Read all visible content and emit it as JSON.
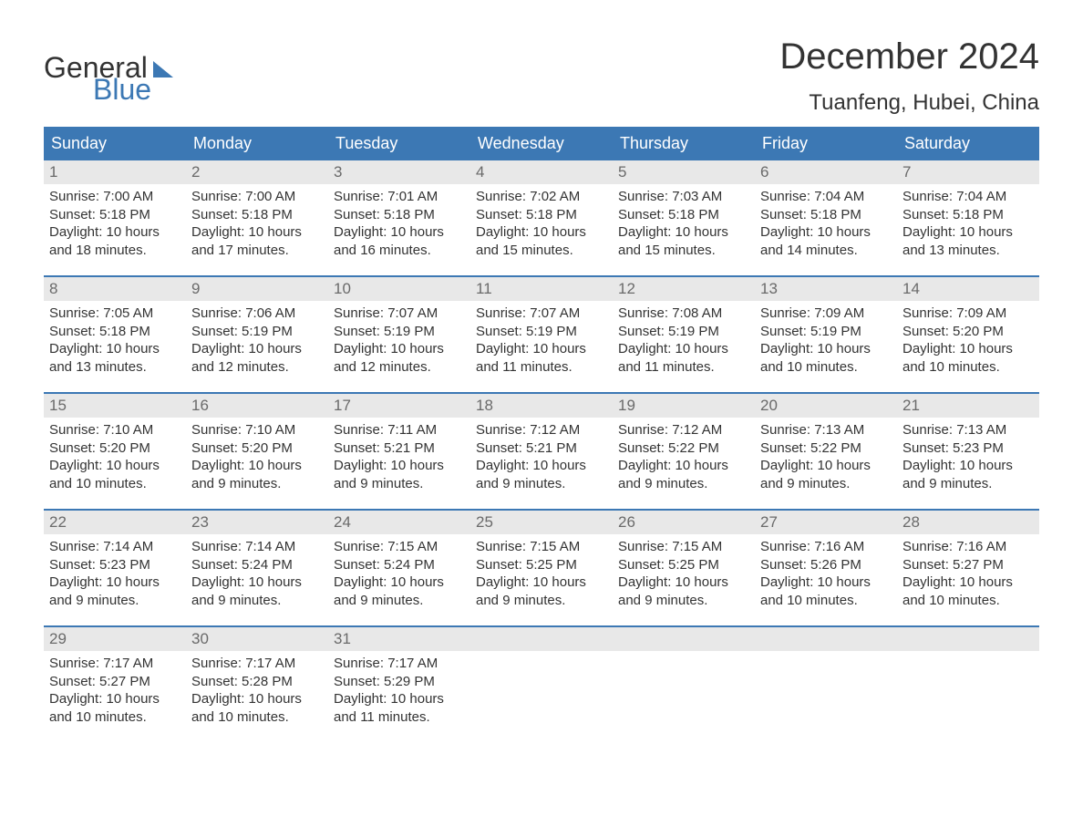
{
  "brand": {
    "word1": "General",
    "word2": "Blue"
  },
  "title": "December 2024",
  "location": "Tuanfeng, Hubei, China",
  "colors": {
    "header_bg": "#3c78b4",
    "header_text": "#ffffff",
    "daynum_bg": "#e8e8e8",
    "daynum_text": "#6a6a6a",
    "body_text": "#333333",
    "week_border": "#3c78b4",
    "page_bg": "#ffffff"
  },
  "font": {
    "family": "Arial",
    "title_size": 40,
    "location_size": 24,
    "dayhead_size": 18,
    "cell_size": 15
  },
  "day_headers": [
    "Sunday",
    "Monday",
    "Tuesday",
    "Wednesday",
    "Thursday",
    "Friday",
    "Saturday"
  ],
  "weeks": [
    [
      {
        "n": "1",
        "sunrise": "7:00 AM",
        "sunset": "5:18 PM",
        "dl1": "Daylight: 10 hours",
        "dl2": "and 18 minutes."
      },
      {
        "n": "2",
        "sunrise": "7:00 AM",
        "sunset": "5:18 PM",
        "dl1": "Daylight: 10 hours",
        "dl2": "and 17 minutes."
      },
      {
        "n": "3",
        "sunrise": "7:01 AM",
        "sunset": "5:18 PM",
        "dl1": "Daylight: 10 hours",
        "dl2": "and 16 minutes."
      },
      {
        "n": "4",
        "sunrise": "7:02 AM",
        "sunset": "5:18 PM",
        "dl1": "Daylight: 10 hours",
        "dl2": "and 15 minutes."
      },
      {
        "n": "5",
        "sunrise": "7:03 AM",
        "sunset": "5:18 PM",
        "dl1": "Daylight: 10 hours",
        "dl2": "and 15 minutes."
      },
      {
        "n": "6",
        "sunrise": "7:04 AM",
        "sunset": "5:18 PM",
        "dl1": "Daylight: 10 hours",
        "dl2": "and 14 minutes."
      },
      {
        "n": "7",
        "sunrise": "7:04 AM",
        "sunset": "5:18 PM",
        "dl1": "Daylight: 10 hours",
        "dl2": "and 13 minutes."
      }
    ],
    [
      {
        "n": "8",
        "sunrise": "7:05 AM",
        "sunset": "5:18 PM",
        "dl1": "Daylight: 10 hours",
        "dl2": "and 13 minutes."
      },
      {
        "n": "9",
        "sunrise": "7:06 AM",
        "sunset": "5:19 PM",
        "dl1": "Daylight: 10 hours",
        "dl2": "and 12 minutes."
      },
      {
        "n": "10",
        "sunrise": "7:07 AM",
        "sunset": "5:19 PM",
        "dl1": "Daylight: 10 hours",
        "dl2": "and 12 minutes."
      },
      {
        "n": "11",
        "sunrise": "7:07 AM",
        "sunset": "5:19 PM",
        "dl1": "Daylight: 10 hours",
        "dl2": "and 11 minutes."
      },
      {
        "n": "12",
        "sunrise": "7:08 AM",
        "sunset": "5:19 PM",
        "dl1": "Daylight: 10 hours",
        "dl2": "and 11 minutes."
      },
      {
        "n": "13",
        "sunrise": "7:09 AM",
        "sunset": "5:19 PM",
        "dl1": "Daylight: 10 hours",
        "dl2": "and 10 minutes."
      },
      {
        "n": "14",
        "sunrise": "7:09 AM",
        "sunset": "5:20 PM",
        "dl1": "Daylight: 10 hours",
        "dl2": "and 10 minutes."
      }
    ],
    [
      {
        "n": "15",
        "sunrise": "7:10 AM",
        "sunset": "5:20 PM",
        "dl1": "Daylight: 10 hours",
        "dl2": "and 10 minutes."
      },
      {
        "n": "16",
        "sunrise": "7:10 AM",
        "sunset": "5:20 PM",
        "dl1": "Daylight: 10 hours",
        "dl2": "and 9 minutes."
      },
      {
        "n": "17",
        "sunrise": "7:11 AM",
        "sunset": "5:21 PM",
        "dl1": "Daylight: 10 hours",
        "dl2": "and 9 minutes."
      },
      {
        "n": "18",
        "sunrise": "7:12 AM",
        "sunset": "5:21 PM",
        "dl1": "Daylight: 10 hours",
        "dl2": "and 9 minutes."
      },
      {
        "n": "19",
        "sunrise": "7:12 AM",
        "sunset": "5:22 PM",
        "dl1": "Daylight: 10 hours",
        "dl2": "and 9 minutes."
      },
      {
        "n": "20",
        "sunrise": "7:13 AM",
        "sunset": "5:22 PM",
        "dl1": "Daylight: 10 hours",
        "dl2": "and 9 minutes."
      },
      {
        "n": "21",
        "sunrise": "7:13 AM",
        "sunset": "5:23 PM",
        "dl1": "Daylight: 10 hours",
        "dl2": "and 9 minutes."
      }
    ],
    [
      {
        "n": "22",
        "sunrise": "7:14 AM",
        "sunset": "5:23 PM",
        "dl1": "Daylight: 10 hours",
        "dl2": "and 9 minutes."
      },
      {
        "n": "23",
        "sunrise": "7:14 AM",
        "sunset": "5:24 PM",
        "dl1": "Daylight: 10 hours",
        "dl2": "and 9 minutes."
      },
      {
        "n": "24",
        "sunrise": "7:15 AM",
        "sunset": "5:24 PM",
        "dl1": "Daylight: 10 hours",
        "dl2": "and 9 minutes."
      },
      {
        "n": "25",
        "sunrise": "7:15 AM",
        "sunset": "5:25 PM",
        "dl1": "Daylight: 10 hours",
        "dl2": "and 9 minutes."
      },
      {
        "n": "26",
        "sunrise": "7:15 AM",
        "sunset": "5:25 PM",
        "dl1": "Daylight: 10 hours",
        "dl2": "and 9 minutes."
      },
      {
        "n": "27",
        "sunrise": "7:16 AM",
        "sunset": "5:26 PM",
        "dl1": "Daylight: 10 hours",
        "dl2": "and 10 minutes."
      },
      {
        "n": "28",
        "sunrise": "7:16 AM",
        "sunset": "5:27 PM",
        "dl1": "Daylight: 10 hours",
        "dl2": "and 10 minutes."
      }
    ],
    [
      {
        "n": "29",
        "sunrise": "7:17 AM",
        "sunset": "5:27 PM",
        "dl1": "Daylight: 10 hours",
        "dl2": "and 10 minutes."
      },
      {
        "n": "30",
        "sunrise": "7:17 AM",
        "sunset": "5:28 PM",
        "dl1": "Daylight: 10 hours",
        "dl2": "and 10 minutes."
      },
      {
        "n": "31",
        "sunrise": "7:17 AM",
        "sunset": "5:29 PM",
        "dl1": "Daylight: 10 hours",
        "dl2": "and 11 minutes."
      },
      {
        "empty": true
      },
      {
        "empty": true
      },
      {
        "empty": true
      },
      {
        "empty": true
      }
    ]
  ],
  "labels": {
    "sunrise_prefix": "Sunrise: ",
    "sunset_prefix": "Sunset: "
  }
}
